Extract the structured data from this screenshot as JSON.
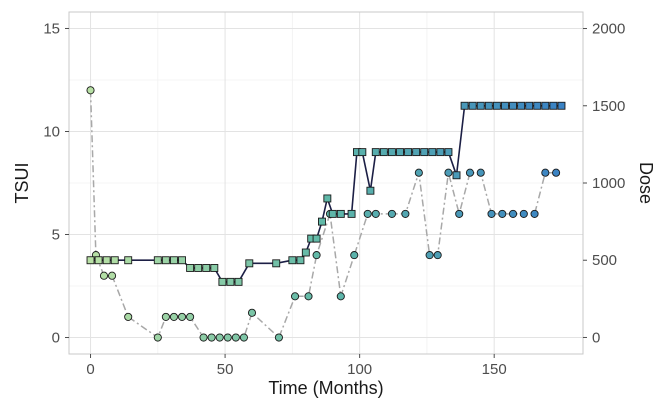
{
  "chart_data": {
    "type": "line",
    "title": "",
    "xlabel": "Time (Months)",
    "ylabel": "TSUI",
    "y2label": "Dose",
    "xlim": [
      -8,
      183
    ],
    "ylim": [
      -0.8,
      15.8
    ],
    "y2lim": [
      -107,
      2107
    ],
    "x_ticks": [
      0,
      50,
      100,
      150
    ],
    "y_ticks": [
      0,
      5,
      10,
      15
    ],
    "y2_ticks": [
      0,
      500,
      1000,
      1500,
      2000
    ],
    "grid": true,
    "legend": "none",
    "colors": {
      "dose_line": "#1c1f45",
      "tsui_line": "#a8a8a8",
      "early": "#b8e0a5",
      "mid": "#5fb8a8",
      "late": "#3a82c4",
      "marker_edge": "#1a1a1a"
    },
    "series": [
      {
        "axis": "y",
        "style": "dashdot",
        "marker": "circle",
        "x": [
          0,
          2,
          5,
          8,
          14,
          25,
          28,
          31,
          34,
          37,
          42,
          45,
          48,
          51,
          54,
          57,
          60,
          70,
          76,
          81,
          84,
          89,
          93,
          98,
          103,
          106,
          112,
          117,
          122,
          126,
          129,
          133,
          137,
          141,
          145,
          149,
          153,
          157,
          161,
          165,
          169,
          173
        ],
        "values": [
          12,
          4,
          3,
          3,
          1,
          0,
          1,
          1,
          1,
          1,
          0,
          0,
          0,
          0,
          0,
          0,
          1.2,
          0,
          2,
          2,
          4,
          6,
          2,
          4,
          6,
          6,
          6,
          6,
          8,
          4,
          4,
          8,
          6,
          8,
          8,
          6,
          6,
          6,
          6,
          6,
          8,
          8
        ]
      },
      {
        "axis": "y2",
        "style": "solid",
        "marker": "square",
        "x": [
          0,
          3,
          6,
          9,
          14,
          25,
          28,
          31,
          34,
          37,
          40,
          43,
          46,
          49,
          52,
          55,
          59,
          69,
          75,
          78,
          80,
          82,
          84,
          86,
          88,
          90,
          93,
          97,
          99,
          101,
          104,
          106,
          109,
          112,
          115,
          118,
          121,
          124,
          127,
          130,
          133,
          136,
          139,
          142,
          145,
          148,
          151,
          154,
          157,
          160,
          163,
          166,
          169,
          172,
          175
        ],
        "values": [
          500,
          500,
          500,
          500,
          500,
          500,
          500,
          500,
          500,
          450,
          450,
          450,
          450,
          360,
          360,
          360,
          480,
          480,
          500,
          500,
          550,
          640,
          640,
          750,
          900,
          800,
          800,
          800,
          1200,
          1200,
          950,
          1200,
          1200,
          1200,
          1200,
          1200,
          1200,
          1200,
          1200,
          1200,
          1200,
          1050,
          1500,
          1500,
          1500,
          1500,
          1500,
          1500,
          1500,
          1500,
          1500,
          1500,
          1500,
          1500,
          1500
        ]
      }
    ]
  }
}
